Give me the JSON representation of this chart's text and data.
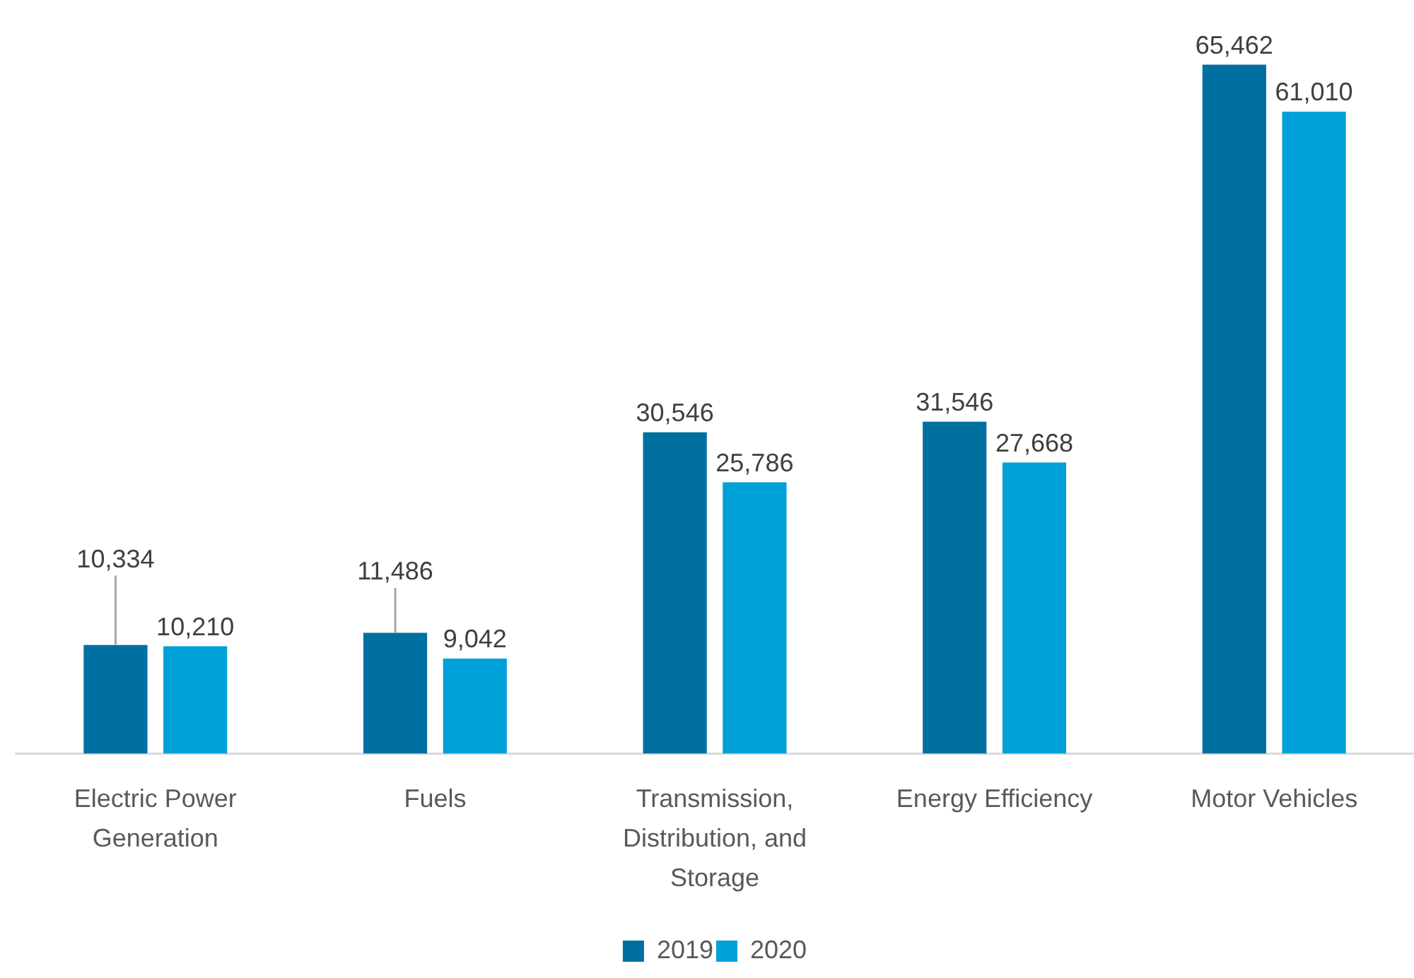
{
  "chart_data": {
    "type": "bar",
    "categories": [
      "Electric Power Generation",
      "Fuels",
      "Transmission, Distribution, and Storage",
      "Energy Efficiency",
      "Motor Vehicles"
    ],
    "series": [
      {
        "name": "2019",
        "color": "#0070a0",
        "values": [
          10334,
          11486,
          30546,
          31546,
          65462
        ],
        "value_labels": [
          "10,334",
          "11,486",
          "30,546",
          "31,546",
          "65,462"
        ]
      },
      {
        "name": "2020",
        "color": "#00a0d8",
        "values": [
          10210,
          9042,
          25786,
          27668,
          61010
        ],
        "value_labels": [
          "10,210",
          "9,042",
          "25,786",
          "27,668",
          "61,010"
        ]
      }
    ],
    "tick_labels": "x",
    "grid": false,
    "legend": "bottom"
  }
}
